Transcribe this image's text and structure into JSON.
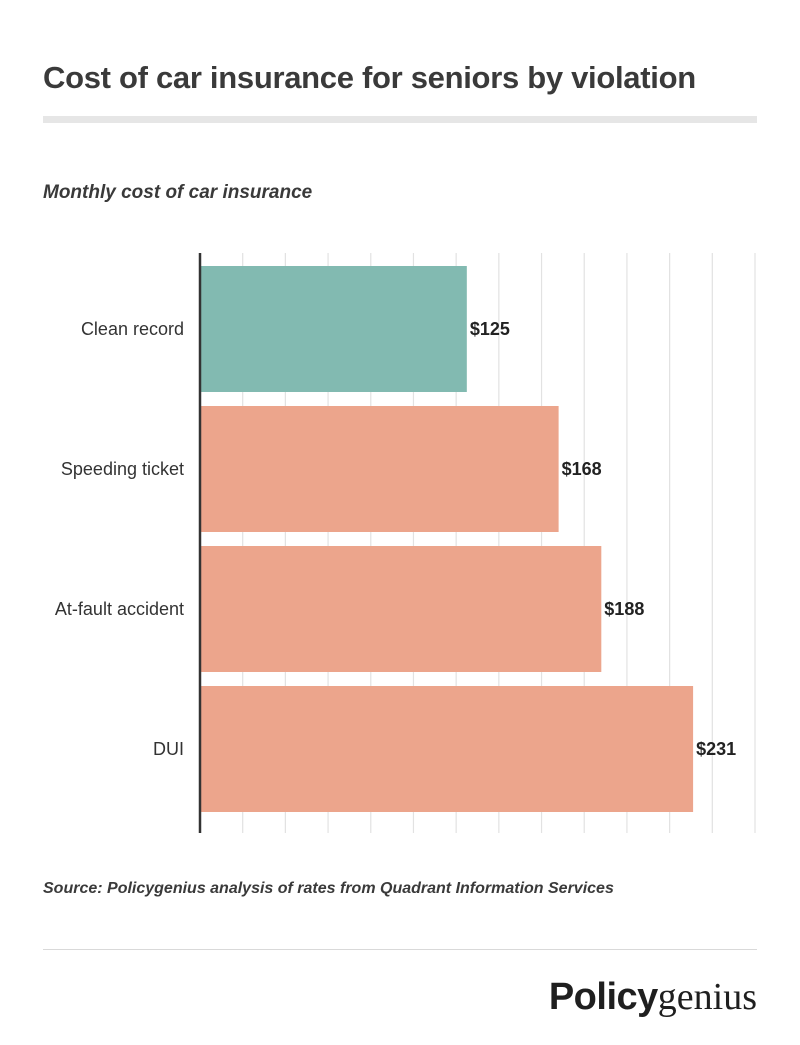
{
  "title": "Cost of car insurance for seniors by violation",
  "subtitle": "Monthly cost of car insurance",
  "source": "Source: Policygenius analysis of rates from Quadrant Information Services",
  "logo": {
    "bold": "Policy",
    "light": "genius"
  },
  "chart_data": {
    "type": "bar",
    "orientation": "horizontal",
    "categories": [
      "Clean record",
      "Speeding ticket",
      "At-fault accident",
      "DUI"
    ],
    "values": [
      125,
      168,
      188,
      231
    ],
    "labels": [
      "$125",
      "$168",
      "$188",
      "$231"
    ],
    "colors": [
      "#82bab1",
      "#eca58c",
      "#eca58c",
      "#eca58c"
    ],
    "xlim": [
      0,
      260
    ],
    "grid": true,
    "gridline_step": 20
  }
}
